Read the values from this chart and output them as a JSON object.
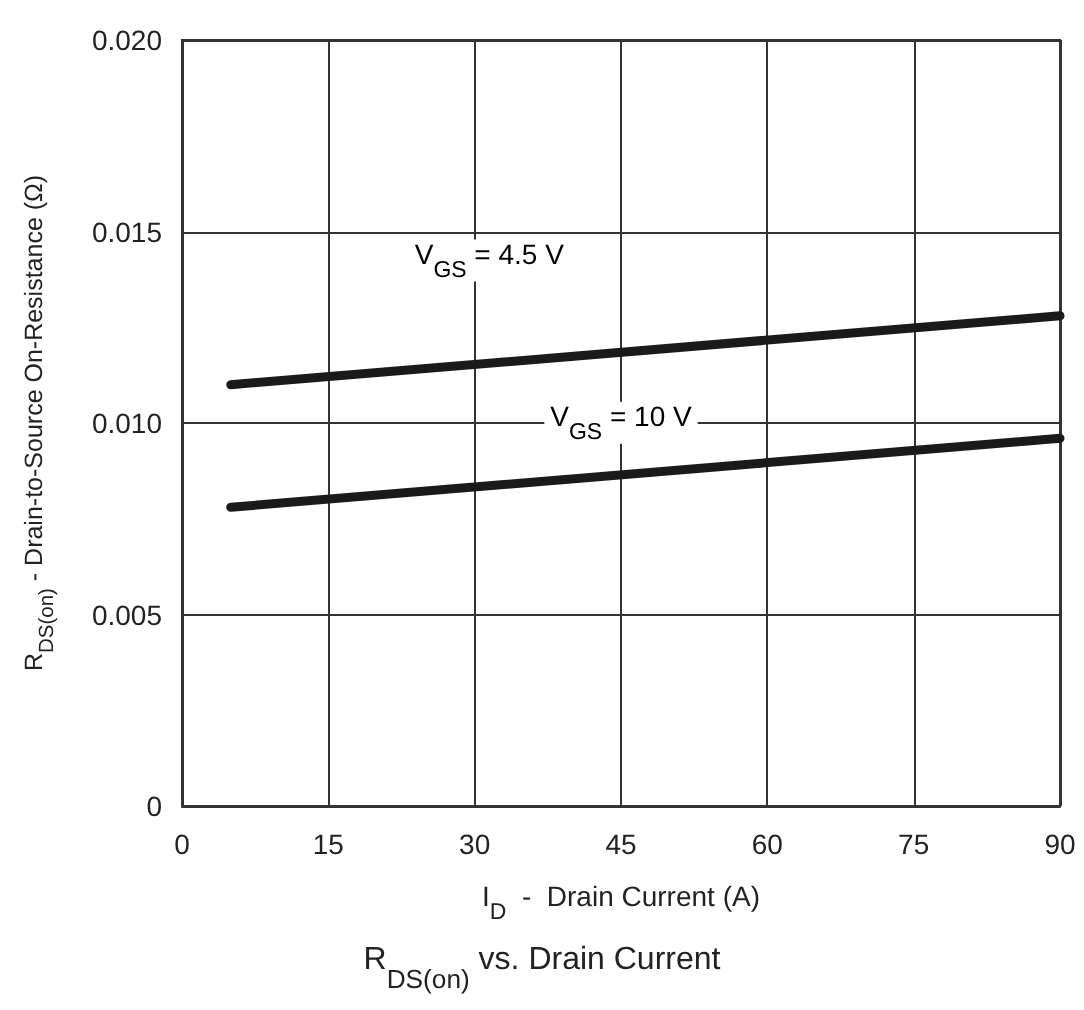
{
  "chart_data": {
    "type": "line",
    "title": "R$_{DS(on)}$ vs. Drain Current",
    "xlabel": "I$_{D}$  -  Drain Current (A)",
    "ylabel": "R$_{DS(on)}$ - Drain-to-Source On-Resistance (Ω)",
    "x": [
      5,
      90
    ],
    "series": [
      {
        "name": "V$_{GS}$ = 4.5 V",
        "color": "#1a1a1a",
        "values": [
          0.011,
          0.0128
        ]
      },
      {
        "name": "V$_{GS}$ = 10 V",
        "color": "#1a1a1a",
        "values": [
          0.0078,
          0.0096
        ]
      }
    ],
    "xlim": [
      0,
      90
    ],
    "xticks": [
      0,
      15,
      30,
      45,
      60,
      75,
      90
    ],
    "ylim": [
      0,
      0.02
    ],
    "yticks": [
      0,
      0.005,
      {
        "value": 0.01,
        "label": "0.010"
      },
      0.015,
      {
        "value": 0.02,
        "label": "0.020"
      }
    ],
    "grid": true,
    "line_style": "solid",
    "marker": "none"
  }
}
